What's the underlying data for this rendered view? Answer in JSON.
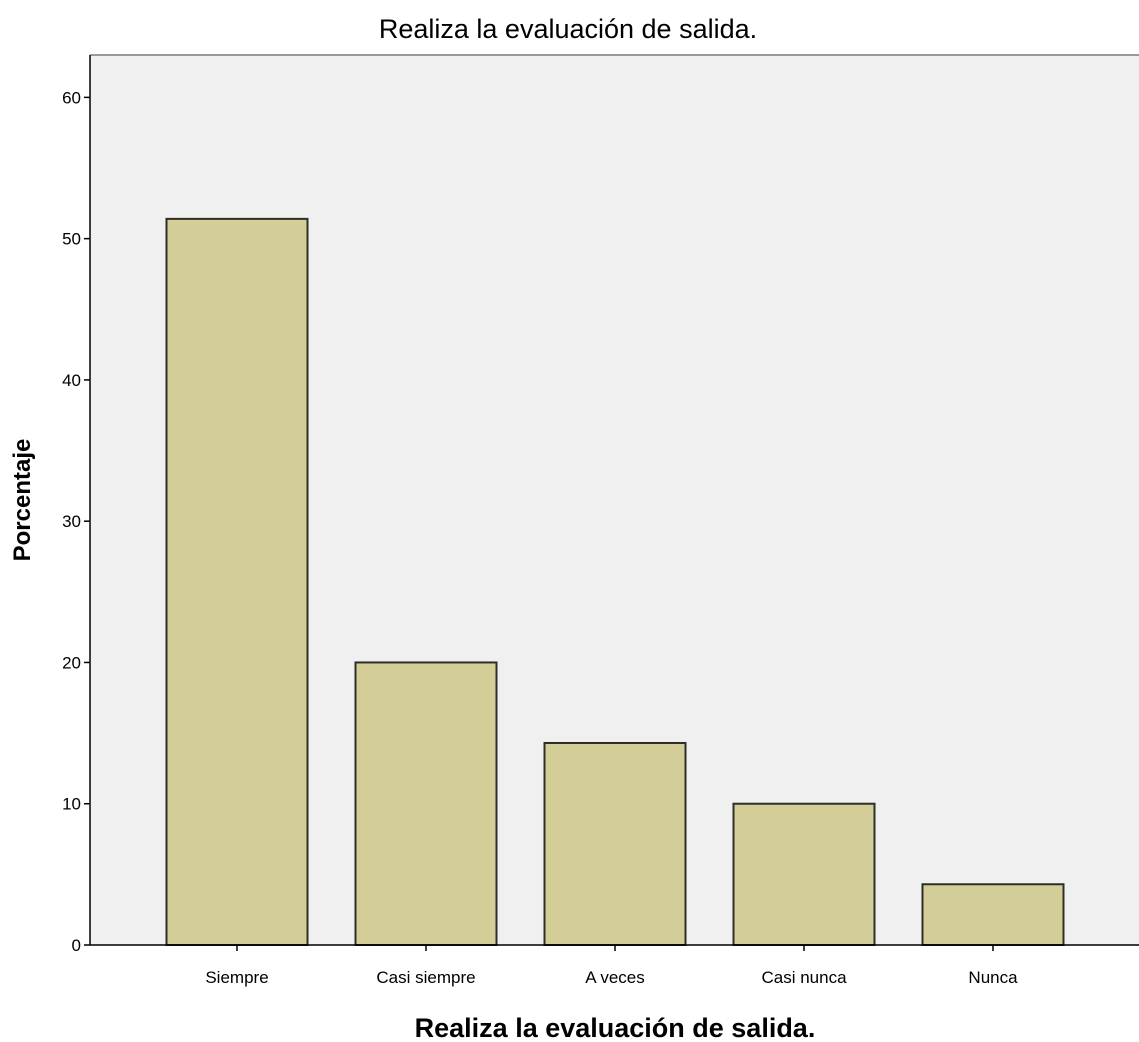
{
  "chart_data": {
    "type": "bar",
    "title": "Realiza la evaluación de salida.",
    "xlabel": "Realiza la evaluación de salida.",
    "ylabel": "Porcentaje",
    "categories": [
      "Siempre",
      "Casi siempre",
      "A veces",
      "Casi nunca",
      "Nunca"
    ],
    "values": [
      51.4,
      20.0,
      14.3,
      10.0,
      4.3
    ],
    "ylim": [
      0,
      63
    ],
    "yticks": [
      "0",
      "10",
      "20",
      "30",
      "40",
      "50",
      "60"
    ],
    "grid": false,
    "legend": "none",
    "colors": {
      "bar_fill": "#d3cd98",
      "bar_stroke": "#2e2e26",
      "plot_background": "#f0f0f0",
      "axis": "#000000"
    }
  }
}
